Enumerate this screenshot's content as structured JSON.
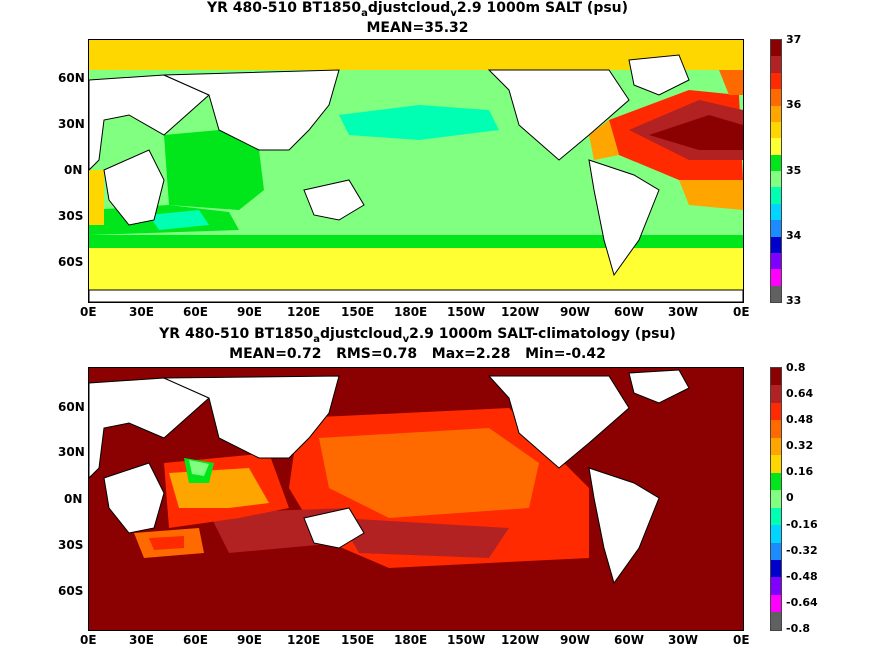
{
  "top": {
    "title_part1": "YR 480-510 BT1850",
    "title_sub1": "a",
    "title_part2": "djustcloud",
    "title_sub2": "v",
    "title_part3": "2.9 1000m SALT (psu)",
    "stats": "MEAN=35.32",
    "colorbar_ticks": [
      "37",
      "36",
      "35",
      "34",
      "33"
    ],
    "colorbar_colors": [
      "#8b0000",
      "#b22222",
      "#ff2a00",
      "#ff6a00",
      "#ffa500",
      "#ffd700",
      "#ffff33",
      "#00e61a",
      "#80ff80",
      "#00ffb3",
      "#00d4ff",
      "#1a8cff",
      "#0000cc",
      "#8000ff",
      "#ff00ff",
      "#606060"
    ]
  },
  "bottom": {
    "title_part1": "YR 480-510 BT1850",
    "title_sub1": "a",
    "title_part2": "djustcloud",
    "title_sub2": "v",
    "title_part3": "2.9 1000m SALT-climatology (psu)",
    "stats": "MEAN=0.72   RMS=0.78   Max=2.28   Min=-0.42",
    "colorbar_ticks": [
      "0.8",
      "0.64",
      "0.48",
      "0.32",
      "0.16",
      "0",
      "-0.16",
      "-0.32",
      "-0.48",
      "-0.64",
      "-0.8"
    ],
    "colorbar_colors": [
      "#8b0000",
      "#b22222",
      "#ff2a00",
      "#ff6a00",
      "#ffa500",
      "#ffd700",
      "#00e61a",
      "#80ff80",
      "#00ffb3",
      "#00d4ff",
      "#1a8cff",
      "#0000cc",
      "#8000ff",
      "#ff00ff",
      "#606060"
    ]
  },
  "lat_labels": [
    "60N",
    "30N",
    "0N",
    "30S",
    "60S"
  ],
  "lon_labels": [
    "0E",
    "30E",
    "60E",
    "90E",
    "120E",
    "150E",
    "180E",
    "150W",
    "120W",
    "90W",
    "60W",
    "30W",
    "0E"
  ]
}
